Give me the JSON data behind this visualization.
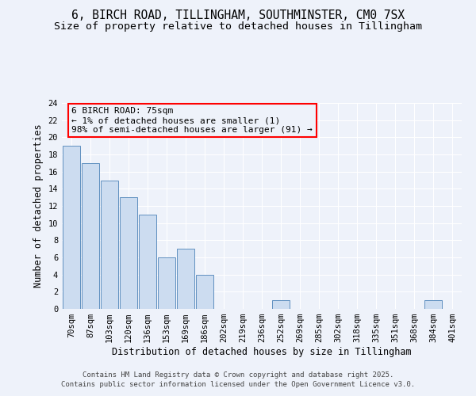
{
  "title_line1": "6, BIRCH ROAD, TILLINGHAM, SOUTHMINSTER, CM0 7SX",
  "title_line2": "Size of property relative to detached houses in Tillingham",
  "xlabel": "Distribution of detached houses by size in Tillingham",
  "ylabel": "Number of detached properties",
  "bar_color": "#ccdcf0",
  "bar_edge_color": "#6090c0",
  "categories": [
    "70sqm",
    "87sqm",
    "103sqm",
    "120sqm",
    "136sqm",
    "153sqm",
    "169sqm",
    "186sqm",
    "202sqm",
    "219sqm",
    "236sqm",
    "252sqm",
    "269sqm",
    "285sqm",
    "302sqm",
    "318sqm",
    "335sqm",
    "351sqm",
    "368sqm",
    "384sqm",
    "401sqm"
  ],
  "values": [
    19,
    17,
    15,
    13,
    11,
    6,
    7,
    4,
    0,
    0,
    0,
    1,
    0,
    0,
    0,
    0,
    0,
    0,
    0,
    1,
    0
  ],
  "ylim": [
    0,
    24
  ],
  "yticks": [
    0,
    2,
    4,
    6,
    8,
    10,
    12,
    14,
    16,
    18,
    20,
    22,
    24
  ],
  "annotation_line1": "6 BIRCH ROAD: 75sqm",
  "annotation_line2": "← 1% of detached houses are smaller (1)",
  "annotation_line3": "98% of semi-detached houses are larger (91) →",
  "footer_line1": "Contains HM Land Registry data © Crown copyright and database right 2025.",
  "footer_line2": "Contains public sector information licensed under the Open Government Licence v3.0.",
  "background_color": "#eef2fa",
  "grid_color": "#ffffff",
  "title_fontsize": 10.5,
  "subtitle_fontsize": 9.5,
  "axis_label_fontsize": 8.5,
  "tick_fontsize": 7.5,
  "annotation_fontsize": 8,
  "footer_fontsize": 6.5
}
